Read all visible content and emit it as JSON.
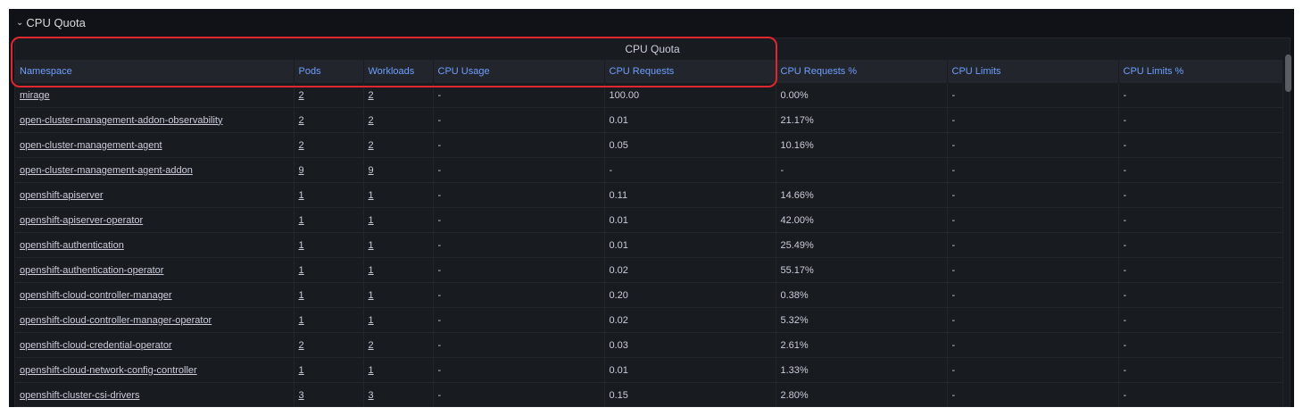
{
  "row_title": "CPU Quota",
  "panel_title": "CPU Quota",
  "columns": [
    "Namespace",
    "Pods",
    "Workloads",
    "CPU Usage",
    "CPU Requests",
    "CPU Requests %",
    "CPU Limits",
    "CPU Limits %"
  ],
  "rows": [
    {
      "namespace": "mirage",
      "pods": "2",
      "workloads": "2",
      "cpu_usage": "-",
      "cpu_requests": "100.00",
      "cpu_requests_pct": "0.00%",
      "cpu_limits": "-",
      "cpu_limits_pct": "-"
    },
    {
      "namespace": "open-cluster-management-addon-observability",
      "pods": "2",
      "workloads": "2",
      "cpu_usage": "-",
      "cpu_requests": "0.01",
      "cpu_requests_pct": "21.17%",
      "cpu_limits": "-",
      "cpu_limits_pct": "-"
    },
    {
      "namespace": "open-cluster-management-agent",
      "pods": "2",
      "workloads": "2",
      "cpu_usage": "-",
      "cpu_requests": "0.05",
      "cpu_requests_pct": "10.16%",
      "cpu_limits": "-",
      "cpu_limits_pct": "-"
    },
    {
      "namespace": "open-cluster-management-agent-addon",
      "pods": "9",
      "workloads": "9",
      "cpu_usage": "-",
      "cpu_requests": "-",
      "cpu_requests_pct": "-",
      "cpu_limits": "-",
      "cpu_limits_pct": "-"
    },
    {
      "namespace": "openshift-apiserver",
      "pods": "1",
      "workloads": "1",
      "cpu_usage": "-",
      "cpu_requests": "0.11",
      "cpu_requests_pct": "14.66%",
      "cpu_limits": "-",
      "cpu_limits_pct": "-"
    },
    {
      "namespace": "openshift-apiserver-operator",
      "pods": "1",
      "workloads": "1",
      "cpu_usage": "-",
      "cpu_requests": "0.01",
      "cpu_requests_pct": "42.00%",
      "cpu_limits": "-",
      "cpu_limits_pct": "-"
    },
    {
      "namespace": "openshift-authentication",
      "pods": "1",
      "workloads": "1",
      "cpu_usage": "-",
      "cpu_requests": "0.01",
      "cpu_requests_pct": "25.49%",
      "cpu_limits": "-",
      "cpu_limits_pct": "-"
    },
    {
      "namespace": "openshift-authentication-operator",
      "pods": "1",
      "workloads": "1",
      "cpu_usage": "-",
      "cpu_requests": "0.02",
      "cpu_requests_pct": "55.17%",
      "cpu_limits": "-",
      "cpu_limits_pct": "-"
    },
    {
      "namespace": "openshift-cloud-controller-manager",
      "pods": "1",
      "workloads": "1",
      "cpu_usage": "-",
      "cpu_requests": "0.20",
      "cpu_requests_pct": "0.38%",
      "cpu_limits": "-",
      "cpu_limits_pct": "-"
    },
    {
      "namespace": "openshift-cloud-controller-manager-operator",
      "pods": "1",
      "workloads": "1",
      "cpu_usage": "-",
      "cpu_requests": "0.02",
      "cpu_requests_pct": "5.32%",
      "cpu_limits": "-",
      "cpu_limits_pct": "-"
    },
    {
      "namespace": "openshift-cloud-credential-operator",
      "pods": "2",
      "workloads": "2",
      "cpu_usage": "-",
      "cpu_requests": "0.03",
      "cpu_requests_pct": "2.61%",
      "cpu_limits": "-",
      "cpu_limits_pct": "-"
    },
    {
      "namespace": "openshift-cloud-network-config-controller",
      "pods": "1",
      "workloads": "1",
      "cpu_usage": "-",
      "cpu_requests": "0.01",
      "cpu_requests_pct": "1.33%",
      "cpu_limits": "-",
      "cpu_limits_pct": "-"
    },
    {
      "namespace": "openshift-cluster-csi-drivers",
      "pods": "3",
      "workloads": "3",
      "cpu_usage": "-",
      "cpu_requests": "0.15",
      "cpu_requests_pct": "2.80%",
      "cpu_limits": "-",
      "cpu_limits_pct": "-"
    }
  ],
  "colors": {
    "background": "#111217",
    "panel": "#181b1f",
    "header_text": "#6e9fff",
    "cell_text": "#ccccdc",
    "highlight": "#e0262e"
  },
  "icons": {
    "row_toggle": "chevron-down-icon"
  }
}
